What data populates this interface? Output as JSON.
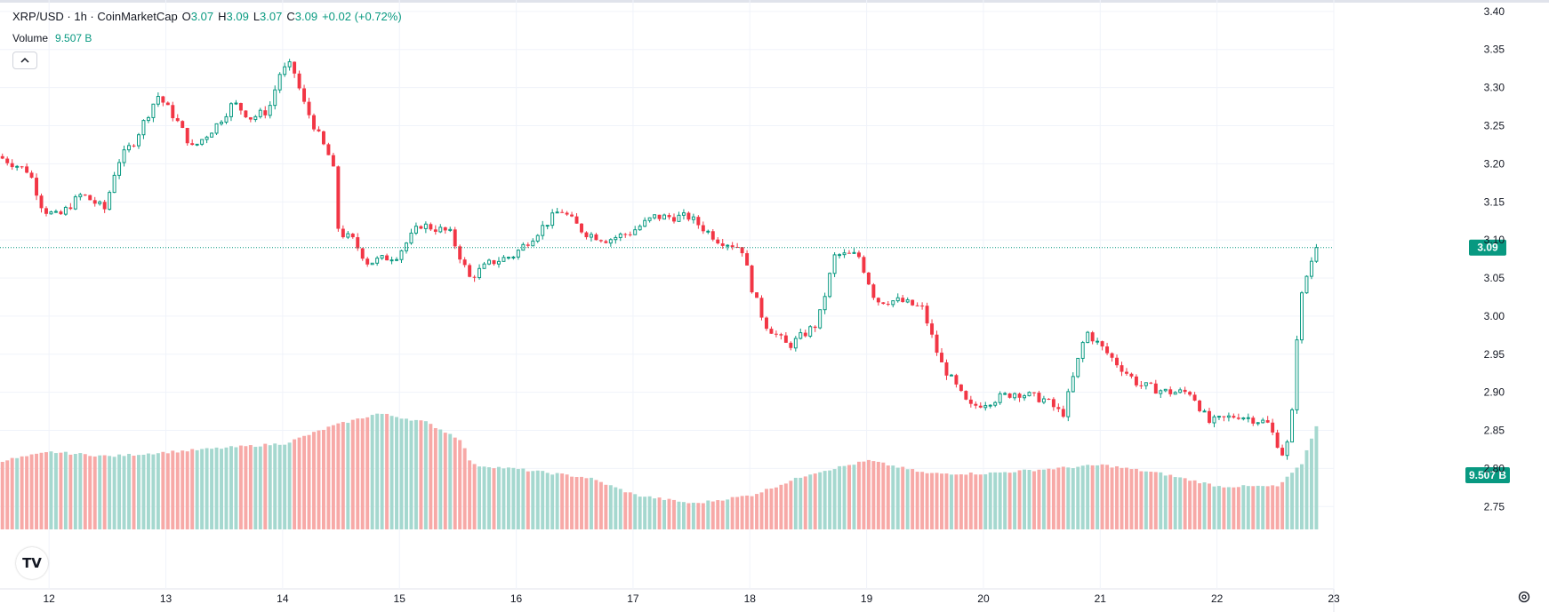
{
  "legend": {
    "symbol": "XRP/USD · 1h · CoinMarketCap",
    "open_label": "O",
    "open": "3.07",
    "high_label": "H",
    "high": "3.09",
    "low_label": "L",
    "low": "3.07",
    "close_label": "C",
    "close": "3.09",
    "change": "+0.02 (+0.72%)"
  },
  "volume_legend": {
    "label": "Volume",
    "value": "9.507 B"
  },
  "logo_text": "TV",
  "icons": {
    "collapse": "chevron-up-icon",
    "settings": "gear-icon",
    "logo": "tradingview-logo-icon"
  },
  "colors": {
    "up": "#089981",
    "down": "#f23645",
    "vol_up": "#a5d8cf",
    "vol_down": "#f7a9a7",
    "grid": "#f0f3fa",
    "price_line": "#089981"
  },
  "chart_data": {
    "type": "candlestick",
    "interval": "1h",
    "y_axis": {
      "ticks": [
        3.4,
        3.35,
        3.3,
        3.25,
        3.2,
        3.15,
        3.1,
        3.05,
        3.0,
        2.95,
        2.9,
        2.85,
        2.8,
        2.75
      ],
      "range": [
        2.72,
        3.415
      ],
      "side": "right"
    },
    "x_axis": {
      "ticks": [
        "12",
        "13",
        "14",
        "15",
        "16",
        "17",
        "18",
        "19",
        "20",
        "21",
        "22",
        "23"
      ],
      "range_days": [
        11.58,
        23.0
      ]
    },
    "last_price": {
      "value": 3.09,
      "label": "3.09"
    },
    "last_volume": {
      "value": 9.507,
      "label": "9.507 B"
    },
    "anchors": [
      [
        11.58,
        3.21
      ],
      [
        11.85,
        3.19
      ],
      [
        11.97,
        3.14
      ],
      [
        12.1,
        3.13
      ],
      [
        12.3,
        3.16
      ],
      [
        12.5,
        3.14
      ],
      [
        12.6,
        3.2
      ],
      [
        12.75,
        3.23
      ],
      [
        12.95,
        3.29
      ],
      [
        13.1,
        3.26
      ],
      [
        13.25,
        3.22
      ],
      [
        13.45,
        3.25
      ],
      [
        13.6,
        3.28
      ],
      [
        13.75,
        3.26
      ],
      [
        13.9,
        3.27
      ],
      [
        14.0,
        3.32
      ],
      [
        14.1,
        3.33
      ],
      [
        14.2,
        3.28
      ],
      [
        14.35,
        3.23
      ],
      [
        14.45,
        3.2
      ],
      [
        14.5,
        3.11
      ],
      [
        14.62,
        3.1
      ],
      [
        14.75,
        3.07
      ],
      [
        15.0,
        3.08
      ],
      [
        15.2,
        3.12
      ],
      [
        15.45,
        3.11
      ],
      [
        15.62,
        3.05
      ],
      [
        15.8,
        3.07
      ],
      [
        16.0,
        3.08
      ],
      [
        16.2,
        3.11
      ],
      [
        16.4,
        3.14
      ],
      [
        16.6,
        3.11
      ],
      [
        16.8,
        3.1
      ],
      [
        17.0,
        3.11
      ],
      [
        17.2,
        3.13
      ],
      [
        17.5,
        3.13
      ],
      [
        17.75,
        3.1
      ],
      [
        17.95,
        3.09
      ],
      [
        18.05,
        3.03
      ],
      [
        18.15,
        2.99
      ],
      [
        18.35,
        2.96
      ],
      [
        18.6,
        2.99
      ],
      [
        18.75,
        3.08
      ],
      [
        18.95,
        3.08
      ],
      [
        19.1,
        3.02
      ],
      [
        19.3,
        3.02
      ],
      [
        19.5,
        3.01
      ],
      [
        19.65,
        2.94
      ],
      [
        19.9,
        2.88
      ],
      [
        20.1,
        2.89
      ],
      [
        20.3,
        2.9
      ],
      [
        20.55,
        2.89
      ],
      [
        20.7,
        2.87
      ],
      [
        20.9,
        2.98
      ],
      [
        21.15,
        2.94
      ],
      [
        21.35,
        2.91
      ],
      [
        21.6,
        2.9
      ],
      [
        21.8,
        2.9
      ],
      [
        21.95,
        2.86
      ],
      [
        22.2,
        2.87
      ],
      [
        22.45,
        2.86
      ],
      [
        22.58,
        2.82
      ],
      [
        22.65,
        2.84
      ],
      [
        22.72,
        3.01
      ],
      [
        22.8,
        3.06
      ],
      [
        22.87,
        3.09
      ]
    ],
    "volume_anchors": [
      [
        11.58,
        8.4
      ],
      [
        12.0,
        8.6
      ],
      [
        12.5,
        8.5
      ],
      [
        13.0,
        8.6
      ],
      [
        13.5,
        8.7
      ],
      [
        14.0,
        8.8
      ],
      [
        14.4,
        9.2
      ],
      [
        14.8,
        9.5
      ],
      [
        15.2,
        9.3
      ],
      [
        15.5,
        8.9
      ],
      [
        15.6,
        8.3
      ],
      [
        16.0,
        8.2
      ],
      [
        16.6,
        8.0
      ],
      [
        17.0,
        7.6
      ],
      [
        17.5,
        7.4
      ],
      [
        18.0,
        7.6
      ],
      [
        18.5,
        8.1
      ],
      [
        19.0,
        8.4
      ],
      [
        19.5,
        8.1
      ],
      [
        20.0,
        8.1
      ],
      [
        20.5,
        8.2
      ],
      [
        21.0,
        8.3
      ],
      [
        21.5,
        8.1
      ],
      [
        22.0,
        7.8
      ],
      [
        22.5,
        7.8
      ],
      [
        22.7,
        8.3
      ],
      [
        22.87,
        9.507
      ]
    ]
  }
}
